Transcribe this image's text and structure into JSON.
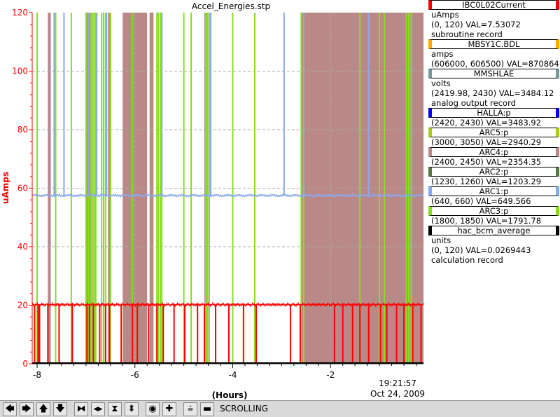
{
  "chart_data": {
    "type": "line",
    "title": "Accel_Energies.stp",
    "ylabel": "uAmps",
    "xlabel": "(Hours)",
    "ylim": [
      0,
      120
    ],
    "xlim": [
      -8.1,
      -0.1
    ],
    "yticks": [
      "0",
      "20",
      "40",
      "60",
      "80",
      "100",
      "120"
    ],
    "xticks": [
      "-8",
      "-6",
      "-4",
      "-2"
    ],
    "now_time": "19:21:57",
    "now_date": "Oct 24, 2009",
    "grid": true,
    "background_color": "#ffffff",
    "axis_color": "#ff0000",
    "series": [
      {
        "name": "IBC0L02Current",
        "color": "#ff0000",
        "baseline": 20.2,
        "dropouts": [
          -8.05,
          -7.98,
          -7.95,
          -7.78,
          -7.55,
          -7.28,
          -6.98,
          -6.93,
          -6.85,
          -6.72,
          -6.6,
          -6.52,
          -6.28,
          -6.05,
          -5.95,
          -5.72,
          -5.55,
          -5.42,
          -5.2,
          -4.98,
          -4.72,
          -4.58,
          -4.35,
          -4.08,
          -3.78,
          -3.52,
          -2.82,
          -2.62,
          -1.92,
          -1.75,
          -1.55,
          -1.4,
          -1.22,
          -0.98,
          -0.85,
          -0.65,
          -0.5,
          -0.32,
          -0.15
        ]
      },
      {
        "name": "ARC1:p",
        "color": "#88aaee",
        "baseline": 57.5,
        "spikes": [
          -7.65,
          -7.45,
          -6.95,
          -6.78,
          -6.58,
          -5.45,
          -4.45,
          -2.95,
          -2.55,
          -1.22
        ]
      },
      {
        "name": "ARC3:p",
        "color": "#88dd22",
        "spikes": [
          -8.0,
          -7.62,
          -7.3,
          -7.0,
          -6.95,
          -6.9,
          -6.86,
          -6.83,
          -6.8,
          -6.68,
          -6.64,
          -6.6,
          -6.5,
          -6.05,
          -5.55,
          -5.52,
          -5.48,
          -5.45,
          -5.0,
          -4.85,
          -4.55,
          -4.52,
          -4.48,
          -4.0,
          -3.55,
          -2.6,
          -2.55,
          -1.4,
          -1.0,
          -0.9,
          -0.45,
          -0.4,
          -0.35
        ]
      },
      {
        "name": "ARC4:p",
        "color": "#bb8888",
        "shade_bands": [
          [
            -7.78,
            -7.72
          ],
          [
            -7.0,
            -6.88
          ],
          [
            -6.55,
            -6.5
          ],
          [
            -6.25,
            -5.75
          ],
          [
            -5.7,
            -5.62
          ],
          [
            -4.58,
            -4.5
          ],
          [
            -2.6,
            -0.1
          ]
        ]
      }
    ]
  },
  "legend": [
    {
      "name": "IBC0L02Current",
      "color": "#ff0000",
      "lines": [
        "uAmps",
        "(0, 120) VAL=7.53072",
        "subroutine record"
      ]
    },
    {
      "name": "MBSY1C.BDL",
      "color": "#ffaa00",
      "lines": [
        "amps",
        "(606000, 606500) VAL=870864"
      ]
    },
    {
      "name": "MMSHLAE",
      "color": "#779999",
      "lines": [
        "volts",
        "(2419.98, 2430) VAL=3484.12",
        "analog output record"
      ]
    },
    {
      "name": "HALLA:p",
      "color": "#0000ee",
      "lines": [
        "(2420, 2430) VAL=3483.92"
      ]
    },
    {
      "name": "ARC5:p",
      "color": "#aacc22",
      "lines": [
        "(3000, 3050) VAL=2940.29"
      ]
    },
    {
      "name": "ARC4:p",
      "color": "#bb8888",
      "lines": [
        "(2400, 2450) VAL=2354.35"
      ]
    },
    {
      "name": "ARC2:p",
      "color": "#557744",
      "lines": [
        "(1230, 1260) VAL=1203.29"
      ]
    },
    {
      "name": "ARC1:p",
      "color": "#88aaee",
      "lines": [
        "(640, 660) VAL=649.566"
      ]
    },
    {
      "name": "ARC3:p",
      "color": "#88dd22",
      "lines": [
        "(1800, 1850) VAL=1791.78"
      ]
    },
    {
      "name": "hac_bcm_average",
      "color": "#000000",
      "lines": [
        "units",
        "(0, 120) VAL=0.0269443",
        "calculation record"
      ]
    }
  ],
  "toolbar": {
    "buttons": [
      {
        "name": "pan-left-button",
        "icon": "arrow-left-icon",
        "glyph": "🡄"
      },
      {
        "name": "pan-right-button",
        "icon": "arrow-right-icon",
        "glyph": "🡆"
      },
      {
        "name": "pan-up-button",
        "icon": "arrow-up-icon",
        "glyph": "🡅"
      },
      {
        "name": "pan-down-button",
        "icon": "arrow-down-icon",
        "glyph": "🡇"
      },
      {
        "name": "zoom-x-in-button",
        "icon": "zoom-x-in-icon",
        "glyph": "⧓"
      },
      {
        "name": "zoom-x-out-button",
        "icon": "zoom-x-out-icon",
        "glyph": "◂▸"
      },
      {
        "name": "zoom-y-in-button",
        "icon": "zoom-y-in-icon",
        "glyph": "⧗"
      },
      {
        "name": "zoom-y-out-button",
        "icon": "zoom-y-out-icon",
        "glyph": "⬍"
      },
      {
        "name": "autoscale-button",
        "icon": "target-icon",
        "glyph": "◉"
      },
      {
        "name": "add-button",
        "icon": "plus-icon",
        "glyph": "✚"
      },
      {
        "name": "toggle-scroll-button",
        "icon": "scroll-icon",
        "glyph": "⩮"
      },
      {
        "name": "stop-scroll-button",
        "icon": "stop-icon",
        "glyph": "▬"
      }
    ],
    "status": "SCROLLING"
  }
}
